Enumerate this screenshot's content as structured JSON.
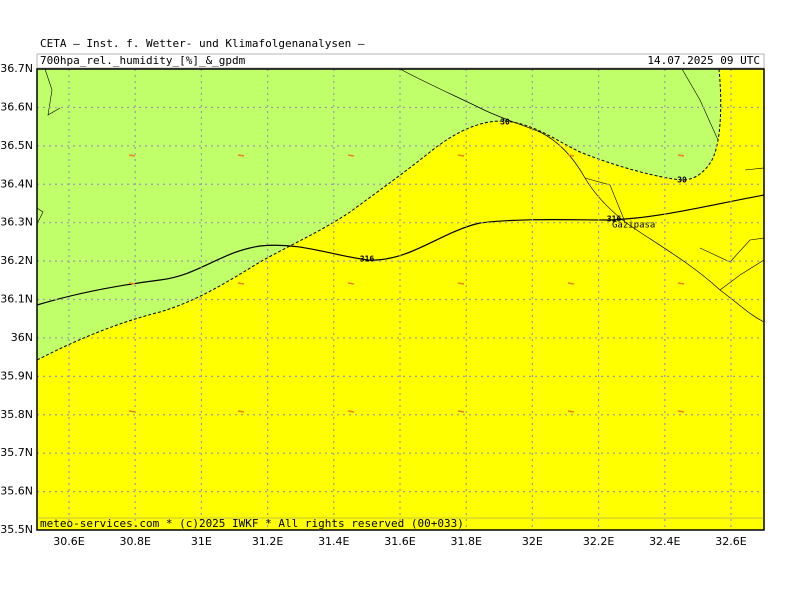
{
  "header": {
    "title": "CETA – Inst. f. Wetter- und Klimafolgenanalysen –",
    "product": "700hpa_rel._humidity_[%]_&_gpdm",
    "valid": "14.07.2025 09 UTC"
  },
  "lat_labels": [
    "36.7N",
    "36.6N",
    "36.5N",
    "36.4N",
    "36.3N",
    "36.2N",
    "36.1N",
    "36N",
    "35.9N",
    "35.8N",
    "35.7N",
    "35.6N",
    "35.5N"
  ],
  "lon_labels": [
    "30.6E",
    "30.8E",
    "31E",
    "31.2E",
    "31.4E",
    "31.6E",
    "31.8E",
    "32E",
    "32.2E",
    "32.4E",
    "32.6E"
  ],
  "contour_labels": [
    "30",
    "30",
    "316",
    "316"
  ],
  "place": "Gazipasa",
  "footer": "meteo-services.com * (c)2025 IWKF * All rights reserved (00+033)"
}
